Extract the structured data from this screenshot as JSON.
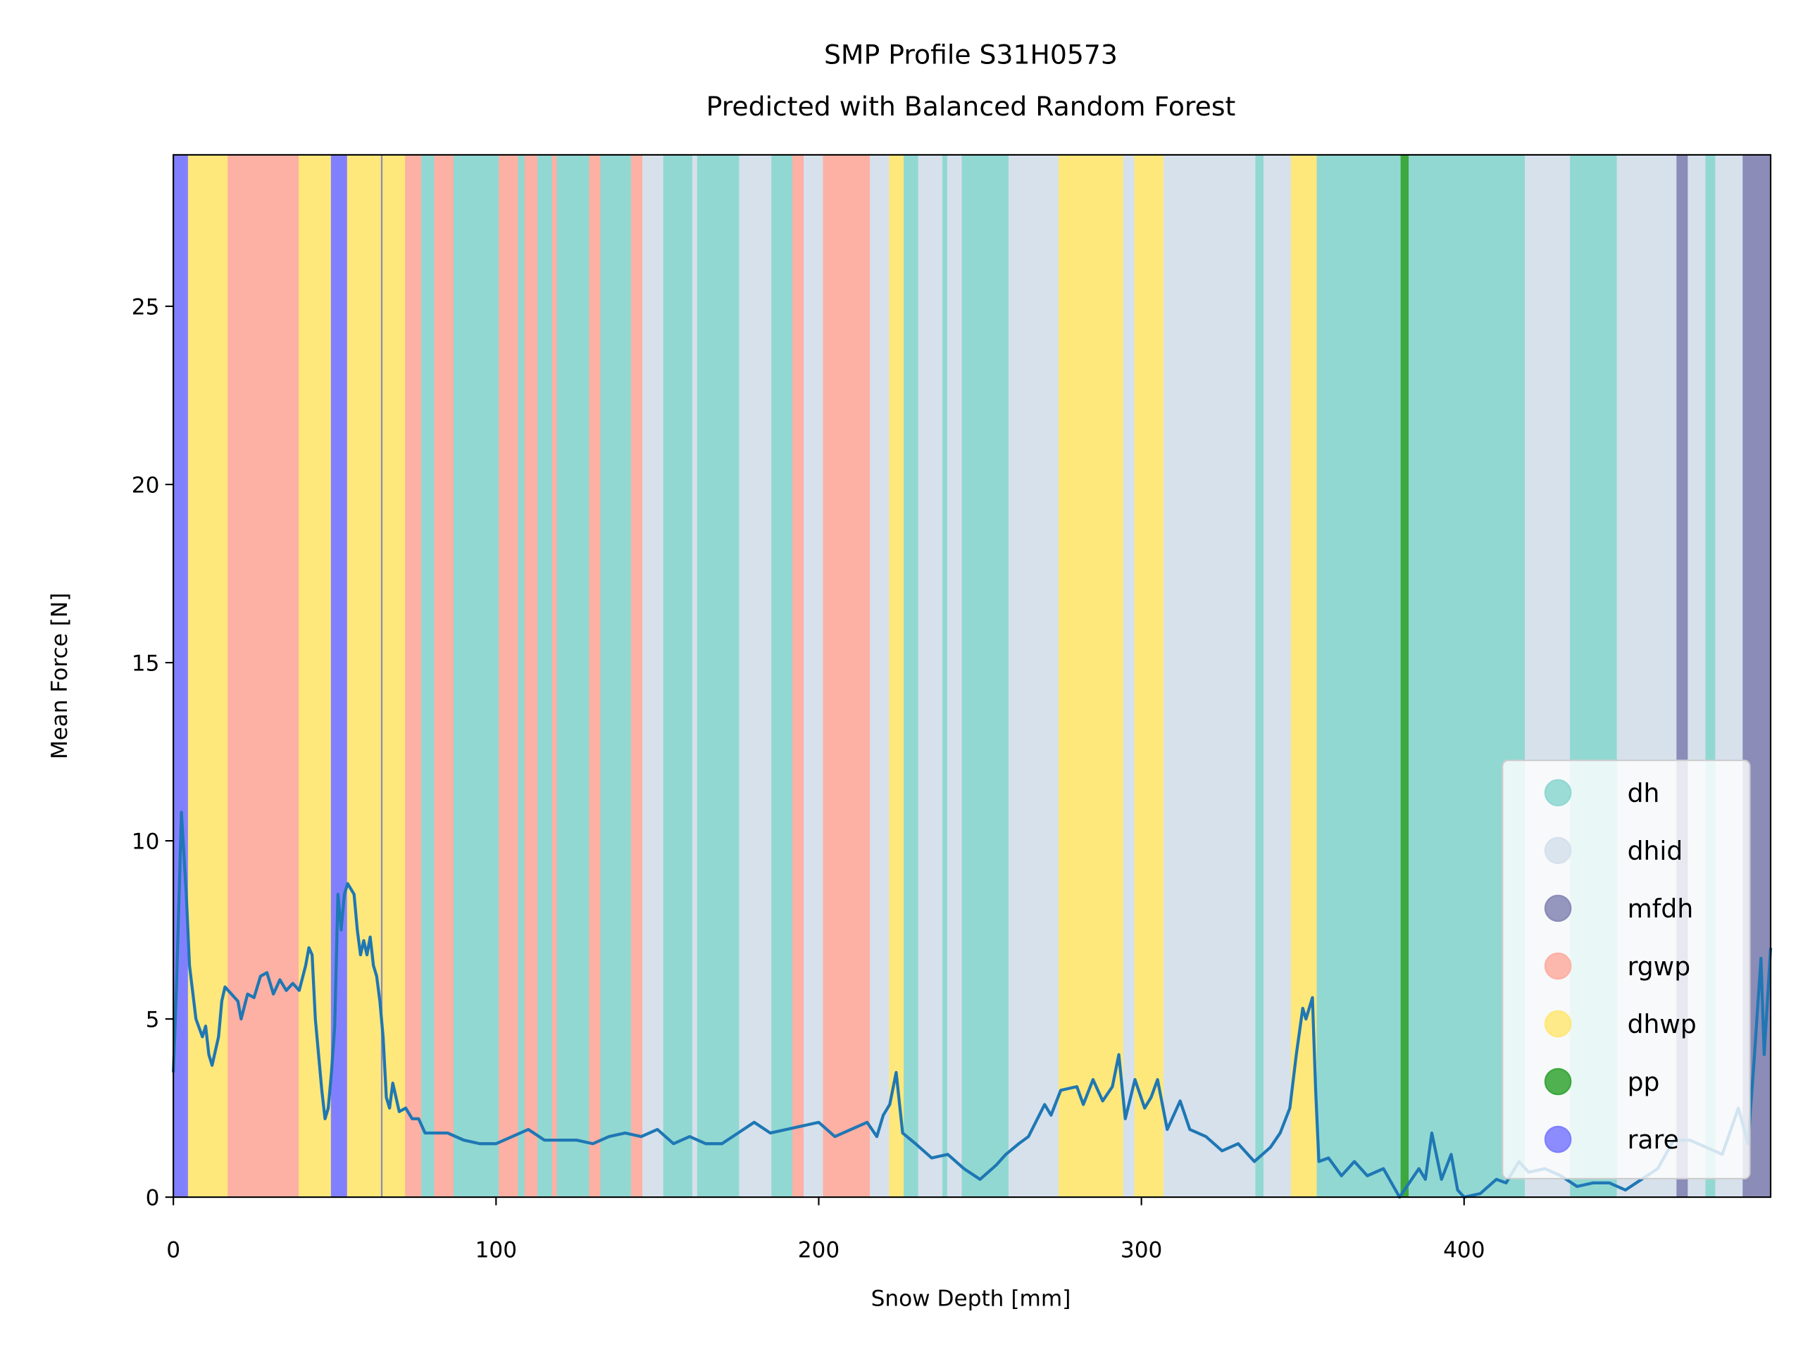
{
  "chart_data": {
    "type": "band-line",
    "title": "SMP Profile S31H0573",
    "subtitle": "Predicted with Balanced Random Forest",
    "x_label": "Snow Depth [mm]",
    "y_label": "Mean Force [N]",
    "xlim": [
      0,
      495
    ],
    "ylim": [
      0,
      29.25
    ],
    "xticks": [
      0,
      100,
      200,
      300,
      400
    ],
    "yticks": [
      0,
      5,
      10,
      15,
      20,
      25
    ],
    "legend": "lower right",
    "classes": [
      {
        "name": "dh",
        "color": "#91d8d2"
      },
      {
        "name": "dhid",
        "color": "#d6e1ec"
      },
      {
        "name": "mfdh",
        "color": "#8b8cb8"
      },
      {
        "name": "rgwp",
        "color": "#fdb0a4"
      },
      {
        "name": "dhwp",
        "color": "#fee87b"
      },
      {
        "name": "pp",
        "color": "#3da83d"
      },
      {
        "name": "rare",
        "color": "#8080ff"
      }
    ],
    "segments": [
      [
        0,
        4.7,
        6
      ],
      [
        4.7,
        17,
        4
      ],
      [
        17,
        39,
        3
      ],
      [
        39,
        49,
        4
      ],
      [
        49,
        54,
        6
      ],
      [
        54,
        64.5,
        4
      ],
      [
        64.5,
        65,
        2
      ],
      [
        65,
        72,
        4
      ],
      [
        72,
        77,
        3
      ],
      [
        77,
        81,
        0
      ],
      [
        81,
        87,
        3
      ],
      [
        87,
        101,
        0
      ],
      [
        101,
        107,
        3
      ],
      [
        107,
        109,
        0
      ],
      [
        109,
        113,
        3
      ],
      [
        113,
        117.5,
        0
      ],
      [
        117.5,
        119,
        3
      ],
      [
        119,
        129,
        0
      ],
      [
        129,
        132.5,
        3
      ],
      [
        132.5,
        142,
        0
      ],
      [
        142,
        145.5,
        3
      ],
      [
        145.5,
        152,
        1
      ],
      [
        152,
        161,
        0
      ],
      [
        161,
        162.5,
        1
      ],
      [
        162.5,
        175.5,
        0
      ],
      [
        175.5,
        185.5,
        1
      ],
      [
        185.5,
        192,
        0
      ],
      [
        192,
        195.5,
        3
      ],
      [
        195.5,
        201.5,
        1
      ],
      [
        201.5,
        216,
        3
      ],
      [
        216,
        222,
        1
      ],
      [
        222,
        226.5,
        4
      ],
      [
        226.5,
        231,
        0
      ],
      [
        231,
        238.5,
        1
      ],
      [
        238.5,
        240,
        0
      ],
      [
        240,
        244.5,
        1
      ],
      [
        244.5,
        259,
        0
      ],
      [
        259,
        274.5,
        1
      ],
      [
        274.5,
        294.5,
        4
      ],
      [
        294.5,
        298,
        1
      ],
      [
        298,
        307,
        4
      ],
      [
        307,
        335.5,
        1
      ],
      [
        335.5,
        338,
        0
      ],
      [
        338,
        346.5,
        1
      ],
      [
        346.5,
        354.5,
        4
      ],
      [
        354.5,
        380.5,
        0
      ],
      [
        380.5,
        383,
        5
      ],
      [
        383,
        419,
        0
      ],
      [
        419,
        433,
        1
      ],
      [
        433,
        447.5,
        0
      ],
      [
        447.5,
        466,
        1
      ],
      [
        466,
        469.5,
        2
      ],
      [
        469.5,
        475,
        1
      ],
      [
        475,
        478,
        0
      ],
      [
        478,
        486.5,
        1
      ],
      [
        486.5,
        495,
        2
      ]
    ],
    "line": {
      "color": "#1f77b4",
      "x": [
        0,
        1,
        2.5,
        4,
        5,
        7,
        9,
        10,
        11,
        12,
        14,
        15,
        16,
        18,
        20,
        21,
        23,
        25,
        27,
        29,
        31,
        33,
        35,
        37,
        39,
        41,
        42,
        43,
        44,
        46,
        47,
        48,
        49,
        50,
        51,
        52,
        53,
        54,
        56,
        57,
        58,
        59,
        60,
        61,
        62,
        63,
        64,
        65,
        66,
        67,
        68,
        69,
        70,
        72,
        74,
        76,
        78,
        80,
        85,
        90,
        95,
        100,
        105,
        110,
        115,
        120,
        125,
        130,
        135,
        140,
        145,
        150,
        155,
        160,
        165,
        170,
        175,
        180,
        185,
        190,
        195,
        200,
        205,
        210,
        215,
        218,
        220,
        222,
        224,
        226,
        230,
        235,
        240,
        245,
        250,
        255,
        258,
        262,
        265,
        270,
        272,
        275,
        280,
        282,
        285,
        288,
        291,
        293,
        295,
        298,
        301,
        303,
        305,
        308,
        312,
        315,
        320,
        325,
        330,
        335,
        340,
        343,
        346,
        348,
        350,
        351,
        353,
        354,
        355,
        358,
        362,
        366,
        370,
        375,
        380,
        383,
        386,
        388,
        390,
        393,
        396,
        398,
        400,
        405,
        410,
        413,
        417,
        420,
        425,
        430,
        435,
        440,
        445,
        450,
        455,
        460,
        465,
        470,
        475,
        480,
        485,
        488,
        490,
        492,
        493,
        494,
        495
      ],
      "values": [
        3.5,
        6,
        10.8,
        8.5,
        6.5,
        5,
        4.5,
        4.8,
        4,
        3.7,
        4.5,
        5.5,
        5.9,
        5.7,
        5.5,
        5,
        5.7,
        5.6,
        6.2,
        6.3,
        5.7,
        6.1,
        5.8,
        6,
        5.8,
        6.5,
        7,
        6.8,
        5,
        3,
        2.2,
        2.5,
        3.5,
        4.8,
        8.5,
        7.5,
        8.5,
        8.8,
        8.5,
        7.5,
        6.8,
        7.2,
        6.8,
        7.3,
        6.5,
        6.2,
        5.5,
        4.5,
        2.8,
        2.5,
        3.2,
        2.8,
        2.4,
        2.5,
        2.2,
        2.2,
        1.8,
        1.8,
        1.8,
        1.6,
        1.5,
        1.5,
        1.7,
        1.9,
        1.6,
        1.6,
        1.6,
        1.5,
        1.7,
        1.8,
        1.7,
        1.9,
        1.5,
        1.7,
        1.5,
        1.5,
        1.8,
        2.1,
        1.8,
        1.9,
        2,
        2.1,
        1.7,
        1.9,
        2.1,
        1.7,
        2.3,
        2.6,
        3.5,
        1.8,
        1.5,
        1.1,
        1.2,
        0.8,
        0.5,
        0.9,
        1.2,
        1.5,
        1.7,
        2.6,
        2.3,
        3,
        3.1,
        2.6,
        3.3,
        2.7,
        3.1,
        4,
        2.2,
        3.3,
        2.5,
        2.8,
        3.3,
        1.9,
        2.7,
        1.9,
        1.7,
        1.3,
        1.5,
        1,
        1.4,
        1.8,
        2.5,
        4,
        5.3,
        5,
        5.6,
        3,
        1,
        1.1,
        0.6,
        1,
        0.6,
        0.8,
        0,
        0.4,
        0.8,
        0.5,
        1.8,
        0.5,
        1.2,
        0.2,
        0,
        0.1,
        0.5,
        0.4,
        1,
        0.7,
        0.8,
        0.6,
        0.3,
        0.4,
        0.4,
        0.2,
        0.5,
        0.8,
        1.6,
        1.6,
        1.4,
        1.2,
        2.5,
        1.5,
        4,
        6.7,
        4,
        5.5,
        7
      ]
    }
  }
}
